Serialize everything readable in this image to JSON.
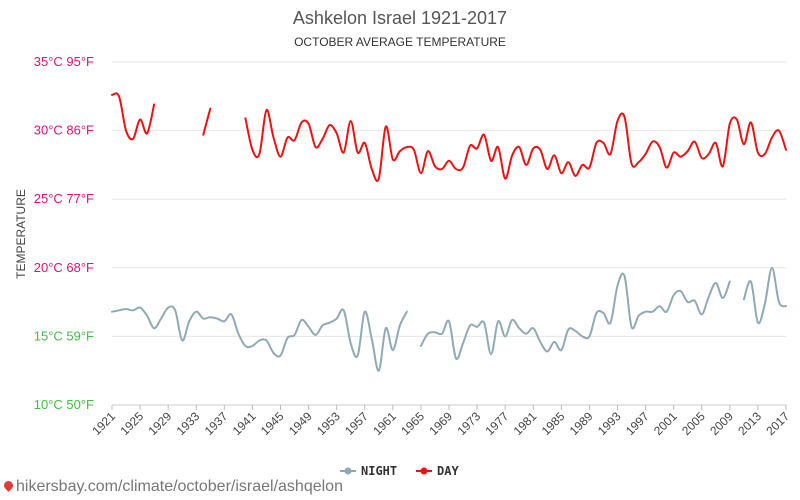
{
  "chart_data": {
    "type": "line",
    "title": "Ashkelon Israel 1921-2017",
    "subtitle": "OCTOBER AVERAGE TEMPERATURE",
    "ylabel": "TEMPERATURE",
    "xlim": [
      1921,
      2017
    ],
    "ylim": [
      10,
      35
    ],
    "yticks": [
      {
        "value": 10,
        "label": "10°C 50°F",
        "color": "#44bb44"
      },
      {
        "value": 15,
        "label": "15°C 59°F",
        "color": "#44bb44"
      },
      {
        "value": 20,
        "label": "20°C 68°F",
        "color": "#dd1177"
      },
      {
        "value": 25,
        "label": "25°C 77°F",
        "color": "#dd1177"
      },
      {
        "value": 30,
        "label": "30°C 86°F",
        "color": "#dd1177"
      },
      {
        "value": 35,
        "label": "35°C 95°F",
        "color": "#dd1177"
      }
    ],
    "xticks": [
      1921,
      1925,
      1929,
      1933,
      1937,
      1941,
      1945,
      1949,
      1953,
      1957,
      1961,
      1965,
      1969,
      1973,
      1977,
      1981,
      1985,
      1989,
      1993,
      1997,
      2001,
      2005,
      2009,
      2013,
      2017
    ],
    "grid": true,
    "legend_position": "bottom",
    "series": [
      {
        "name": "NIGHT",
        "color": "#90aab5",
        "segments": [
          {
            "start": 1921,
            "values": [
              16.8,
              16.9,
              17.0,
              16.9,
              17.1,
              16.5,
              15.6,
              16.3,
              17.1,
              16.9,
              14.7,
              16.1,
              16.8,
              16.3,
              16.4,
              16.3,
              16.1,
              16.6,
              15.2,
              14.3,
              14.3,
              14.7,
              14.7,
              13.8,
              13.6,
              14.9,
              15.1,
              16.2,
              15.7,
              15.1,
              15.8,
              16.0,
              16.3,
              16.9,
              14.5,
              13.6,
              16.8,
              14.8,
              12.5,
              15.6,
              14.0,
              15.8,
              16.8
            ]
          },
          {
            "start": 1965,
            "values": [
              14.3,
              15.2,
              15.3,
              15.2,
              16.1,
              13.4,
              14.5,
              15.8,
              15.7,
              16.0,
              13.7,
              16.1,
              15.0,
              16.2,
              15.6,
              15.2,
              15.6,
              14.6,
              13.9,
              14.6,
              14.0,
              15.5,
              15.4,
              15.0,
              15.0,
              16.7,
              16.7,
              16.0,
              18.7,
              19.4,
              15.7,
              16.5,
              16.8,
              16.8,
              17.2,
              16.8,
              18.0,
              18.3,
              17.5,
              17.6,
              16.6,
              17.9,
              18.9,
              17.8,
              19.0
            ]
          },
          {
            "start": 2011,
            "values": [
              17.7,
              19.0,
              16.0,
              17.4,
              20.0,
              17.5,
              17.2
            ]
          }
        ]
      },
      {
        "name": "DAY",
        "color": "#ee1111",
        "segments": [
          {
            "start": 1921,
            "values": [
              32.6,
              32.5,
              30.0,
              29.4,
              30.8,
              29.8,
              31.9
            ]
          },
          {
            "start": 1934,
            "values": [
              29.7,
              31.6
            ]
          },
          {
            "start": 1940,
            "values": [
              30.9,
              28.6,
              28.3,
              31.5,
              29.5,
              28.1,
              29.5,
              29.3,
              30.6,
              30.5,
              28.8,
              29.4,
              30.4,
              29.8,
              28.4,
              30.7,
              28.4,
              29.1,
              27.2,
              26.5,
              30.3,
              27.9,
              28.5,
              28.8,
              28.6,
              26.9,
              28.5,
              27.4,
              27.2,
              27.8,
              27.2,
              27.3,
              28.9,
              28.7,
              29.7,
              27.8,
              28.8,
              26.5,
              28.2,
              28.8,
              27.5,
              28.7,
              28.6,
              27.2,
              28.2,
              26.9,
              27.7,
              26.7,
              27.5,
              27.3,
              29.1,
              29.1,
              28.3,
              30.7,
              31.0,
              27.6,
              27.7,
              28.3,
              29.2,
              28.8,
              27.3,
              28.4,
              28.1,
              28.5,
              29.2,
              28.0,
              28.3,
              29.1,
              27.4,
              30.5,
              30.8,
              29.0,
              30.6,
              28.4,
              28.3,
              29.5,
              30.0,
              28.6
            ]
          }
        ]
      }
    ]
  },
  "legend": {
    "night_label": "NIGHT",
    "day_label": "DAY"
  },
  "footer": {
    "source_text": "hikersbay.com/climate/october/israel/ashqelon"
  }
}
